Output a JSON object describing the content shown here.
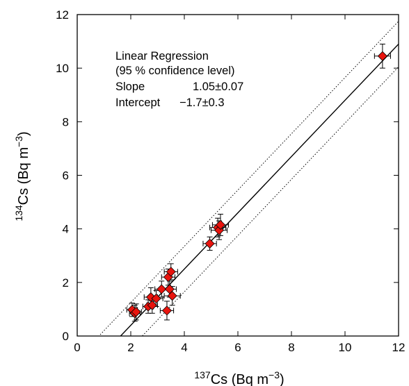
{
  "chart_data": {
    "type": "scatter",
    "xlabel": "137Cs (Bq m-3)",
    "xlabel_parts": {
      "sup": "137",
      "main": "Cs (Bq m",
      "unit_sup": "−3",
      "close": ")"
    },
    "ylabel": "134Cs (Bq m-3)",
    "ylabel_parts": {
      "sup": "134",
      "main": "Cs (Bq m",
      "unit_sup": "−3",
      "close": ")"
    },
    "xlim": [
      0,
      12
    ],
    "ylim": [
      0,
      12
    ],
    "xticks": [
      0,
      2,
      4,
      6,
      8,
      10,
      12
    ],
    "yticks": [
      0,
      2,
      4,
      6,
      8,
      10,
      12
    ],
    "grid": false,
    "legend": "none",
    "annotation": {
      "line1": "Linear Regression",
      "line2": "(95 % confidence level)",
      "slope_label": "Slope",
      "slope_value": "1.05±0.07",
      "intercept_label": "Intercept",
      "intercept_value": "−1.7±0.3"
    },
    "regression": {
      "slope": 1.05,
      "intercept": -1.7,
      "band_offset": 0.85
    },
    "marker_color": "#e8140e",
    "points": [
      {
        "x": 2.05,
        "y": 0.98,
        "xerr": 0.2,
        "yerr": 0.25
      },
      {
        "x": 2.15,
        "y": 0.85,
        "xerr": 0.2,
        "yerr": 0.3
      },
      {
        "x": 2.2,
        "y": 0.9,
        "xerr": 0.2,
        "yerr": 0.3
      },
      {
        "x": 2.65,
        "y": 1.1,
        "xerr": 0.2,
        "yerr": 0.25
      },
      {
        "x": 2.75,
        "y": 1.45,
        "xerr": 0.25,
        "yerr": 0.35
      },
      {
        "x": 2.8,
        "y": 1.15,
        "xerr": 0.2,
        "yerr": 0.3
      },
      {
        "x": 2.95,
        "y": 1.4,
        "xerr": 0.25,
        "yerr": 0.3
      },
      {
        "x": 3.15,
        "y": 1.75,
        "xerr": 0.25,
        "yerr": 0.3
      },
      {
        "x": 3.35,
        "y": 0.95,
        "xerr": 0.25,
        "yerr": 0.35
      },
      {
        "x": 3.4,
        "y": 2.2,
        "xerr": 0.25,
        "yerr": 0.3
      },
      {
        "x": 3.45,
        "y": 1.75,
        "xerr": 0.25,
        "yerr": 0.3
      },
      {
        "x": 3.5,
        "y": 2.4,
        "xerr": 0.25,
        "yerr": 0.3
      },
      {
        "x": 3.55,
        "y": 1.5,
        "xerr": 0.3,
        "yerr": 0.35
      },
      {
        "x": 4.95,
        "y": 3.45,
        "xerr": 0.25,
        "yerr": 0.25
      },
      {
        "x": 5.25,
        "y": 4.05,
        "xerr": 0.3,
        "yerr": 0.35
      },
      {
        "x": 5.3,
        "y": 3.95,
        "xerr": 0.3,
        "yerr": 0.35
      },
      {
        "x": 5.35,
        "y": 4.15,
        "xerr": 0.3,
        "yerr": 0.4
      },
      {
        "x": 11.4,
        "y": 10.45,
        "xerr": 0.3,
        "yerr": 0.45
      }
    ]
  }
}
